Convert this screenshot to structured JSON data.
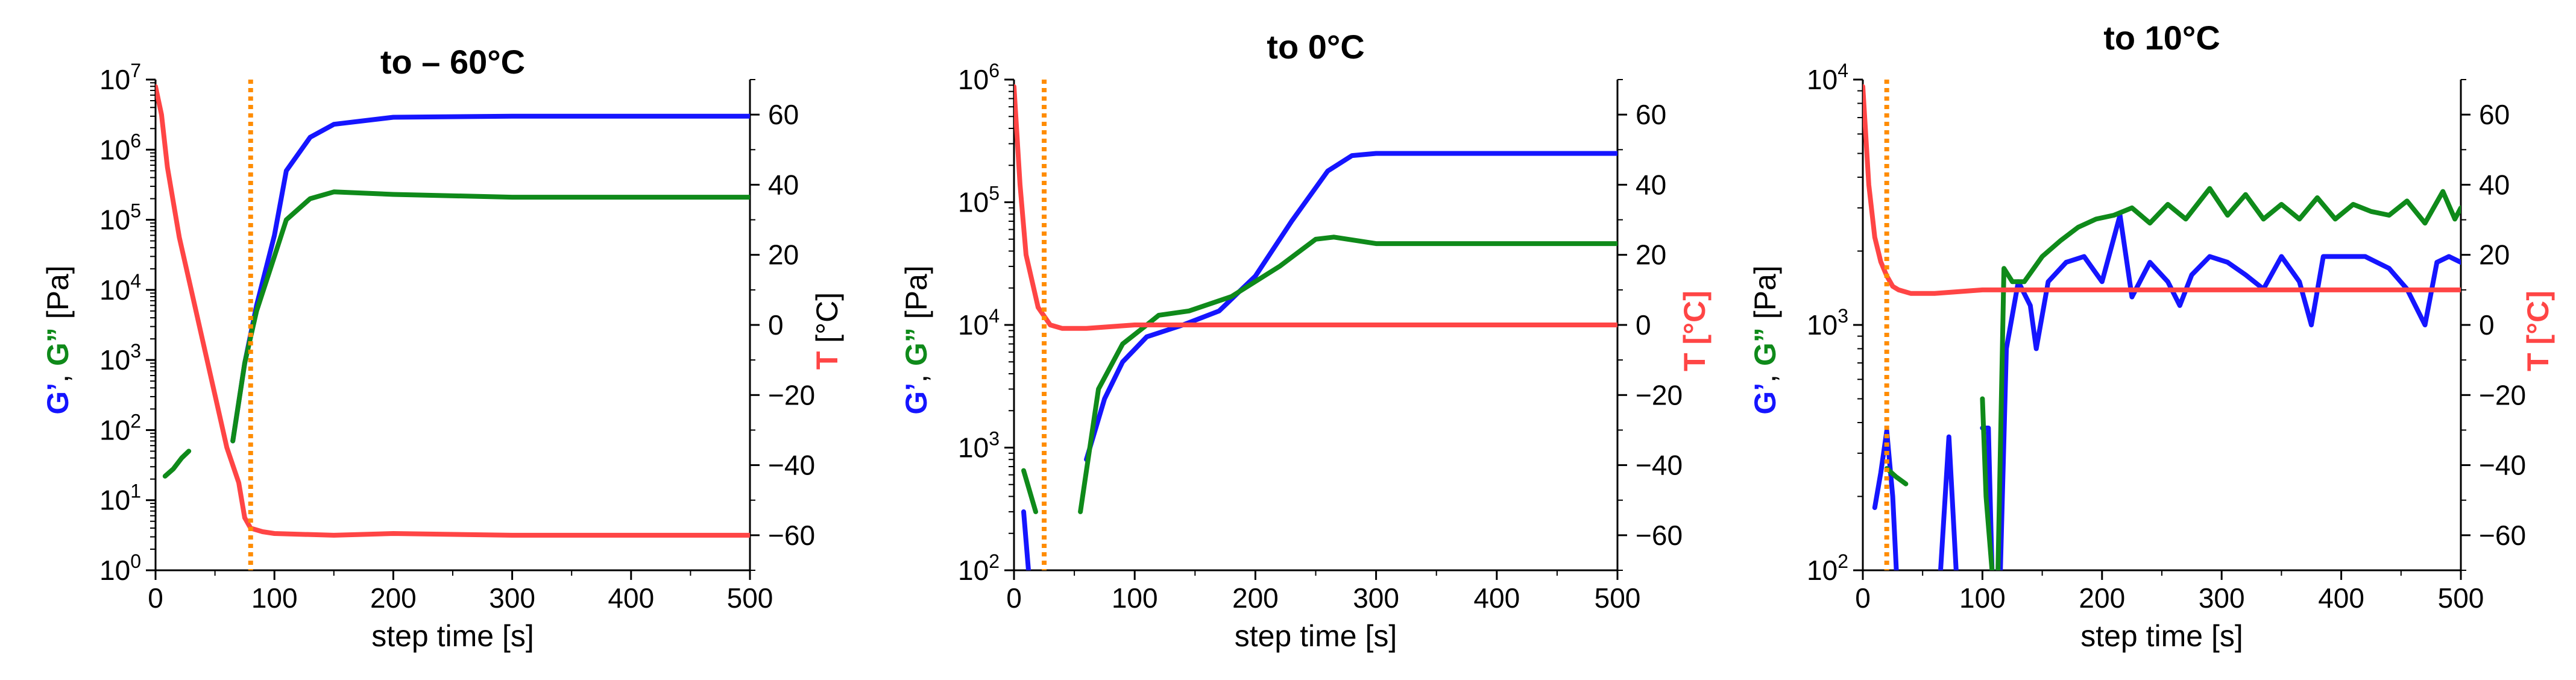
{
  "chart_data": [
    {
      "type": "line",
      "title": "to – 60°C",
      "xlabel": "step time [s]",
      "ylabel_left": [
        {
          "text": "G’",
          "color_key": "blue"
        },
        {
          "text": ", ",
          "color_key": "black"
        },
        {
          "text": "G”",
          "color_key": "green"
        },
        {
          "text": " [Pa]",
          "color_key": "black"
        }
      ],
      "ylabel_right": [
        {
          "text": "T",
          "color_key": "red"
        },
        {
          "text": " [°C]",
          "color_key": "black"
        }
      ],
      "xlim": [
        0,
        500
      ],
      "xticks": [
        0,
        100,
        200,
        300,
        400,
        500
      ],
      "ylim_left_log": [
        0,
        7
      ],
      "yticks_left": [
        {
          "base": "10",
          "exp": "0"
        },
        {
          "base": "10",
          "exp": "1"
        },
        {
          "base": "10",
          "exp": "2"
        },
        {
          "base": "10",
          "exp": "3"
        },
        {
          "base": "10",
          "exp": "4"
        },
        {
          "base": "10",
          "exp": "5"
        },
        {
          "base": "10",
          "exp": "6"
        },
        {
          "base": "10",
          "exp": "7"
        }
      ],
      "ylim_right": [
        -70,
        70
      ],
      "yticks_right": [
        -60,
        -40,
        -20,
        0,
        20,
        40,
        60
      ],
      "vline_x": 80,
      "series": [
        {
          "name": "G'",
          "color_key": "blue",
          "axis": "left",
          "segments": [
            [
              [
                65,
                70
              ],
              [
                75,
                900
              ],
              [
                85,
                6000
              ],
              [
                100,
                60000
              ],
              [
                110,
                500000
              ],
              [
                130,
                1500000
              ],
              [
                150,
                2300000
              ],
              [
                200,
                2900000
              ],
              [
                300,
                3000000
              ],
              [
                500,
                3000000
              ]
            ]
          ]
        },
        {
          "name": "G''",
          "color_key": "green",
          "axis": "left",
          "segments": [
            [
              [
                8,
                22
              ],
              [
                15,
                28
              ],
              [
                22,
                40
              ],
              [
                28,
                50
              ]
            ],
            [
              [
                65,
                70
              ],
              [
                75,
                900
              ],
              [
                85,
                5000
              ],
              [
                100,
                30000
              ],
              [
                110,
                100000
              ],
              [
                130,
                200000
              ],
              [
                150,
                250000
              ],
              [
                200,
                230000
              ],
              [
                300,
                210000
              ],
              [
                500,
                210000
              ]
            ]
          ]
        },
        {
          "name": "T",
          "color_key": "red",
          "axis": "right",
          "segments": [
            [
              [
                0,
                68
              ],
              [
                5,
                60
              ],
              [
                10,
                45
              ],
              [
                20,
                25
              ],
              [
                30,
                10
              ],
              [
                40,
                -5
              ],
              [
                50,
                -20
              ],
              [
                60,
                -35
              ],
              [
                70,
                -45
              ],
              [
                75,
                -55
              ],
              [
                80,
                -58
              ],
              [
                90,
                -59
              ],
              [
                100,
                -59.5
              ],
              [
                150,
                -60
              ],
              [
                200,
                -59.5
              ],
              [
                300,
                -60
              ],
              [
                400,
                -60
              ],
              [
                500,
                -60
              ]
            ]
          ]
        }
      ]
    },
    {
      "type": "line",
      "title": "to 0°C",
      "xlabel": "step time [s]",
      "ylabel_left": [
        {
          "text": "G’",
          "color_key": "blue"
        },
        {
          "text": ", ",
          "color_key": "black"
        },
        {
          "text": "G”",
          "color_key": "green"
        },
        {
          "text": " [Pa]",
          "color_key": "black"
        }
      ],
      "ylabel_right": [
        {
          "text": "T",
          "color_key": "red"
        },
        {
          "text": " [°C]",
          "color_key": "red"
        }
      ],
      "xlim": [
        0,
        500
      ],
      "xticks": [
        0,
        100,
        200,
        300,
        400,
        500
      ],
      "ylim_left_log": [
        2,
        6
      ],
      "yticks_left": [
        {
          "base": "10",
          "exp": "2"
        },
        {
          "base": "10",
          "exp": "3"
        },
        {
          "base": "10",
          "exp": "4"
        },
        {
          "base": "10",
          "exp": "5"
        },
        {
          "base": "10",
          "exp": "6"
        }
      ],
      "ylim_right": [
        -70,
        70
      ],
      "yticks_right": [
        -60,
        -40,
        -20,
        0,
        20,
        40,
        60
      ],
      "vline_x": 25,
      "series": [
        {
          "name": "G'",
          "color_key": "blue",
          "axis": "left",
          "segments": [
            [
              [
                8,
                300
              ],
              [
                12,
                100
              ]
            ],
            [
              [
                60,
                800
              ],
              [
                75,
                2500
              ],
              [
                90,
                5000
              ],
              [
                110,
                8000
              ],
              [
                140,
                10000
              ],
              [
                170,
                13000
              ],
              [
                200,
                25000
              ],
              [
                230,
                70000
              ],
              [
                260,
                180000
              ],
              [
                280,
                240000
              ],
              [
                300,
                250000
              ],
              [
                500,
                250000
              ]
            ]
          ]
        },
        {
          "name": "G''",
          "color_key": "green",
          "axis": "left",
          "segments": [
            [
              [
                8,
                650
              ],
              [
                18,
                300
              ]
            ],
            [
              [
                55,
                300
              ],
              [
                70,
                3000
              ],
              [
                90,
                7000
              ],
              [
                110,
                10000
              ],
              [
                120,
                12000
              ],
              [
                145,
                13000
              ],
              [
                180,
                17000
              ],
              [
                220,
                30000
              ],
              [
                250,
                50000
              ],
              [
                265,
                52000
              ],
              [
                300,
                46000
              ],
              [
                500,
                46000
              ]
            ]
          ]
        },
        {
          "name": "T",
          "color_key": "red",
          "axis": "right",
          "segments": [
            [
              [
                0,
                68
              ],
              [
                5,
                40
              ],
              [
                10,
                20
              ],
              [
                20,
                5
              ],
              [
                30,
                0
              ],
              [
                40,
                -1
              ],
              [
                60,
                -1
              ],
              [
                100,
                0
              ],
              [
                150,
                0
              ],
              [
                200,
                0
              ],
              [
                300,
                0
              ],
              [
                400,
                0
              ],
              [
                500,
                0
              ]
            ]
          ]
        }
      ]
    },
    {
      "type": "line",
      "title": "to 10°C",
      "xlabel": "step time [s]",
      "ylabel_left": [
        {
          "text": "G’",
          "color_key": "blue"
        },
        {
          "text": ", ",
          "color_key": "black"
        },
        {
          "text": "G”",
          "color_key": "green"
        },
        {
          "text": " [Pa]",
          "color_key": "black"
        }
      ],
      "ylabel_right": [
        {
          "text": "T",
          "color_key": "red"
        },
        {
          "text": " [°C]",
          "color_key": "red"
        }
      ],
      "xlim": [
        0,
        500
      ],
      "xticks": [
        0,
        100,
        200,
        300,
        400,
        500
      ],
      "ylim_left_log": [
        2,
        4
      ],
      "yticks_left": [
        {
          "base": "10",
          "exp": "2"
        },
        {
          "base": "10",
          "exp": "3"
        },
        {
          "base": "10",
          "exp": "4"
        }
      ],
      "ylim_right": [
        -70,
        70
      ],
      "yticks_right": [
        -60,
        -40,
        -20,
        0,
        20,
        40,
        60
      ],
      "vline_x": 20,
      "series": [
        {
          "name": "G'",
          "color_key": "blue",
          "axis": "left",
          "segments": [
            [
              [
                10,
                180
              ],
              [
                15,
                250
              ],
              [
                20,
                370
              ],
              [
                25,
                200
              ],
              [
                28,
                100
              ]
            ],
            [
              [
                65,
                100
              ],
              [
                72,
                350
              ],
              [
                78,
                100
              ]
            ],
            [
              [
                100,
                380
              ],
              [
                105,
                380
              ],
              [
                108,
                100
              ]
            ],
            [
              [
                115,
                100
              ],
              [
                120,
                800
              ],
              [
                130,
                1500
              ],
              [
                140,
                1200
              ],
              [
                145,
                800
              ],
              [
                155,
                1500
              ],
              [
                170,
                1800
              ],
              [
                185,
                1900
              ],
              [
                200,
                1500
              ],
              [
                215,
                2800
              ],
              [
                225,
                1300
              ],
              [
                240,
                1800
              ],
              [
                255,
                1500
              ],
              [
                265,
                1200
              ],
              [
                275,
                1600
              ],
              [
                290,
                1900
              ],
              [
                305,
                1800
              ],
              [
                320,
                1600
              ],
              [
                335,
                1400
              ],
              [
                350,
                1900
              ],
              [
                365,
                1500
              ],
              [
                375,
                1000
              ],
              [
                385,
                1900
              ],
              [
                400,
                1900
              ],
              [
                420,
                1900
              ],
              [
                440,
                1700
              ],
              [
                455,
                1400
              ],
              [
                470,
                1000
              ],
              [
                480,
                1800
              ],
              [
                490,
                1900
              ],
              [
                500,
                1800
              ]
            ]
          ]
        },
        {
          "name": "G''",
          "color_key": "green",
          "axis": "left",
          "segments": [
            [
              [
                20,
                260
              ],
              [
                28,
                240
              ],
              [
                36,
                225
              ]
            ],
            [
              [
                100,
                500
              ],
              [
                103,
                200
              ],
              [
                108,
                100
              ]
            ],
            [
              [
                113,
                100
              ],
              [
                118,
                1700
              ],
              [
                125,
                1500
              ],
              [
                135,
                1500
              ],
              [
                150,
                1900
              ],
              [
                165,
                2200
              ],
              [
                180,
                2500
              ],
              [
                195,
                2700
              ],
              [
                210,
                2800
              ],
              [
                225,
                3000
              ],
              [
                240,
                2600
              ],
              [
                255,
                3100
              ],
              [
                270,
                2700
              ],
              [
                290,
                3600
              ],
              [
                305,
                2800
              ],
              [
                320,
                3400
              ],
              [
                335,
                2700
              ],
              [
                350,
                3100
              ],
              [
                365,
                2700
              ],
              [
                380,
                3300
              ],
              [
                395,
                2700
              ],
              [
                410,
                3100
              ],
              [
                425,
                2900
              ],
              [
                440,
                2800
              ],
              [
                455,
                3200
              ],
              [
                470,
                2600
              ],
              [
                485,
                3500
              ],
              [
                495,
                2700
              ],
              [
                500,
                3000
              ]
            ]
          ]
        },
        {
          "name": "T",
          "color_key": "red",
          "axis": "right",
          "segments": [
            [
              [
                0,
                68
              ],
              [
                5,
                40
              ],
              [
                10,
                25
              ],
              [
                15,
                18
              ],
              [
                20,
                14
              ],
              [
                25,
                11
              ],
              [
                30,
                10
              ],
              [
                40,
                9
              ],
              [
                60,
                9
              ],
              [
                100,
                10
              ],
              [
                200,
                10
              ],
              [
                300,
                10
              ],
              [
                400,
                10
              ],
              [
                500,
                10
              ]
            ]
          ]
        }
      ]
    }
  ],
  "colors": {
    "blue": "#1515ff",
    "green": "#0f8a1a",
    "red": "#ff4545",
    "orange": "#ff8c00",
    "black": "#000000"
  }
}
